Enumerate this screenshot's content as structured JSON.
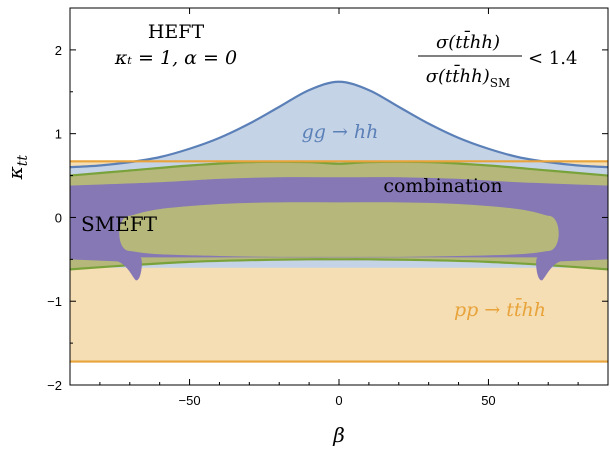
{
  "chart_data": {
    "type": "area",
    "xlabel": "β",
    "ylabel": "κ_tt",
    "xlim": [
      -90,
      90
    ],
    "ylim": [
      -2,
      2.5
    ],
    "x_ticks": [
      -50,
      0,
      50
    ],
    "y_ticks": [
      -2,
      -1,
      0,
      1,
      2
    ],
    "grid": false,
    "annotations": {
      "heft_title": "HEFT",
      "heft_params": "κ_t = 1,  α = 0",
      "constraint": "σ(tt̄hh) / σ(tt̄hh)_SM < 1.4"
    },
    "regions": [
      {
        "name": "pp → tt̄hh",
        "color": "#f5deb3",
        "edge": "#e8a33a",
        "y_lower": -1.72,
        "y_upper": 0.67
      },
      {
        "name": "gg → hh",
        "color": "#c5d3e6",
        "edge": "#5b80b8",
        "x": [
          -90,
          -80,
          -70,
          -60,
          -50,
          -40,
          -30,
          -20,
          -10,
          0,
          10,
          20,
          30,
          40,
          50,
          60,
          70,
          80,
          90
        ],
        "y_upper": [
          0.6,
          0.62,
          0.66,
          0.72,
          0.82,
          0.95,
          1.12,
          1.32,
          1.52,
          1.62,
          1.52,
          1.32,
          1.12,
          0.95,
          0.82,
          0.72,
          0.66,
          0.62,
          0.6
        ],
        "y_lower": -0.6
      },
      {
        "name": "combination",
        "color": "#b5b87a",
        "edge": "#7aa23a",
        "x": [
          -90,
          -70,
          -50,
          -30,
          -10,
          0,
          10,
          30,
          50,
          70,
          90
        ],
        "y_upper": [
          0.5,
          0.56,
          0.62,
          0.66,
          0.66,
          0.64,
          0.66,
          0.66,
          0.62,
          0.56,
          0.5
        ],
        "y_lower": [
          -0.62,
          -0.57,
          -0.53,
          -0.51,
          -0.5,
          -0.5,
          -0.5,
          -0.51,
          -0.53,
          -0.57,
          -0.62
        ]
      },
      {
        "name": "SMEFT",
        "color": "#8677b5",
        "edge": "#8677b5",
        "outer_x": [
          -90,
          -60,
          -40,
          -20,
          0,
          20,
          40,
          60,
          90
        ],
        "outer_upper": [
          0.38,
          0.42,
          0.46,
          0.48,
          0.48,
          0.48,
          0.46,
          0.42,
          0.38
        ],
        "outer_lower": [
          -0.5,
          -0.5,
          -0.51,
          -0.52,
          -0.52,
          -0.52,
          -0.51,
          -0.5,
          -0.5
        ],
        "hole_x": [
          -70,
          -60,
          -40,
          -20,
          0,
          20,
          40,
          60,
          70
        ],
        "hole_upper": [
          0.02,
          0.1,
          0.16,
          0.18,
          0.18,
          0.18,
          0.16,
          0.1,
          0.02
        ],
        "hole_lower": [
          -0.4,
          -0.44,
          -0.46,
          -0.47,
          -0.47,
          -0.47,
          -0.46,
          -0.44,
          -0.4
        ],
        "tip_y": -0.75
      }
    ],
    "region_labels": [
      {
        "text": "gg → hh",
        "color": "#5b80b8"
      },
      {
        "text": "combination",
        "color": "#000000"
      },
      {
        "text": "SMEFT",
        "color": "#000000"
      },
      {
        "text": "pp → tt̄hh",
        "color": "#e8a33a"
      }
    ]
  }
}
